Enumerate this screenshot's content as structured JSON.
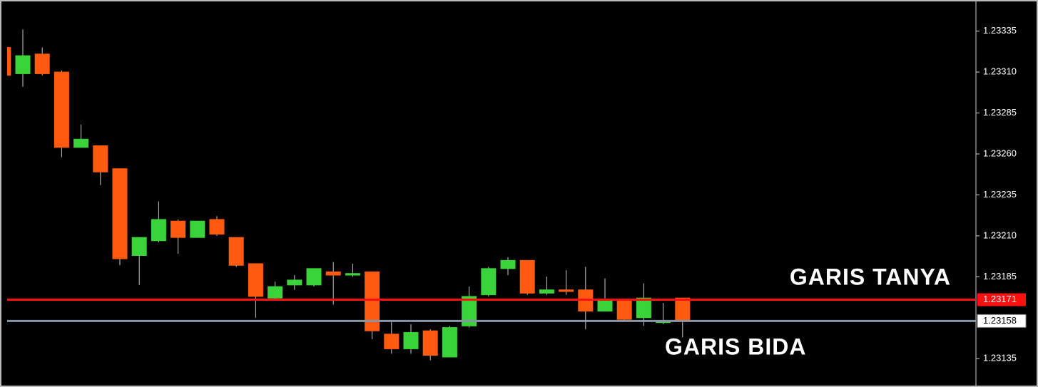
{
  "chart_data": {
    "type": "candlestick",
    "open": [
      1.23325,
      1.23309,
      1.23321,
      1.2331,
      1.23264,
      1.23265,
      1.23251,
      1.23198,
      1.23207,
      1.23219,
      1.23209,
      1.2322,
      1.23209,
      1.23193,
      1.23172,
      1.2318,
      1.2318,
      1.23188,
      1.23186,
      1.23188,
      1.2315,
      1.23141,
      1.23152,
      1.23136,
      1.23155,
      1.23174,
      1.2319,
      1.23195,
      1.23175,
      1.23177,
      1.23177,
      1.23164,
      1.23171,
      1.2316,
      1.23157,
      1.23172
    ],
    "high": [
      1.23325,
      1.23336,
      1.23325,
      1.23311,
      1.23278,
      1.23265,
      1.23251,
      1.23209,
      1.23231,
      1.2322,
      1.23219,
      1.23222,
      1.23209,
      1.23193,
      1.23182,
      1.23186,
      1.2319,
      1.23194,
      1.23193,
      1.23188,
      1.23158,
      1.23156,
      1.23153,
      1.23155,
      1.23179,
      1.23191,
      1.23197,
      1.23195,
      1.23185,
      1.23189,
      1.23191,
      1.23184,
      1.23171,
      1.23181,
      1.23169,
      1.23172
    ],
    "low": [
      1.23308,
      1.23301,
      1.23308,
      1.23258,
      1.23264,
      1.23241,
      1.23192,
      1.2318,
      1.23206,
      1.23199,
      1.23209,
      1.2321,
      1.23191,
      1.2316,
      1.23171,
      1.23177,
      1.23179,
      1.23168,
      1.23185,
      1.23147,
      1.23138,
      1.23138,
      1.23134,
      1.23136,
      1.23154,
      1.23173,
      1.23186,
      1.23174,
      1.23174,
      1.23174,
      1.23153,
      1.23164,
      1.23158,
      1.23155,
      1.23156,
      1.23148
    ],
    "close": [
      1.23308,
      1.2332,
      1.23309,
      1.23264,
      1.23269,
      1.23249,
      1.23196,
      1.23209,
      1.2322,
      1.23209,
      1.23219,
      1.23211,
      1.23192,
      1.23173,
      1.23179,
      1.23183,
      1.2319,
      1.23186,
      1.23187,
      1.23152,
      1.23141,
      1.23151,
      1.23137,
      1.23154,
      1.23173,
      1.2319,
      1.23195,
      1.23175,
      1.23177,
      1.23176,
      1.23164,
      1.23171,
      1.23159,
      1.23172,
      1.23158,
      1.23158
    ],
    "up_color": "#3ad33a",
    "down_color": "#ff5a10",
    "ylim": [
      1.23119,
      1.23354
    ],
    "yticks": [
      1.23335,
      {
        "value": 1.2331,
        "label": "1.23310"
      },
      1.23285,
      {
        "value": 1.2326,
        "label": "1.23260"
      },
      1.23235,
      {
        "value": 1.2321,
        "label": "1.23210"
      },
      1.23185,
      1.23135
    ],
    "ask": 1.23171,
    "ask_color": "#ff1010",
    "bid": 1.23158,
    "bid_color": "#8797a6",
    "ask_annotation": "GARIS TANYA",
    "bid_annotation": "GARIS BIDA"
  }
}
